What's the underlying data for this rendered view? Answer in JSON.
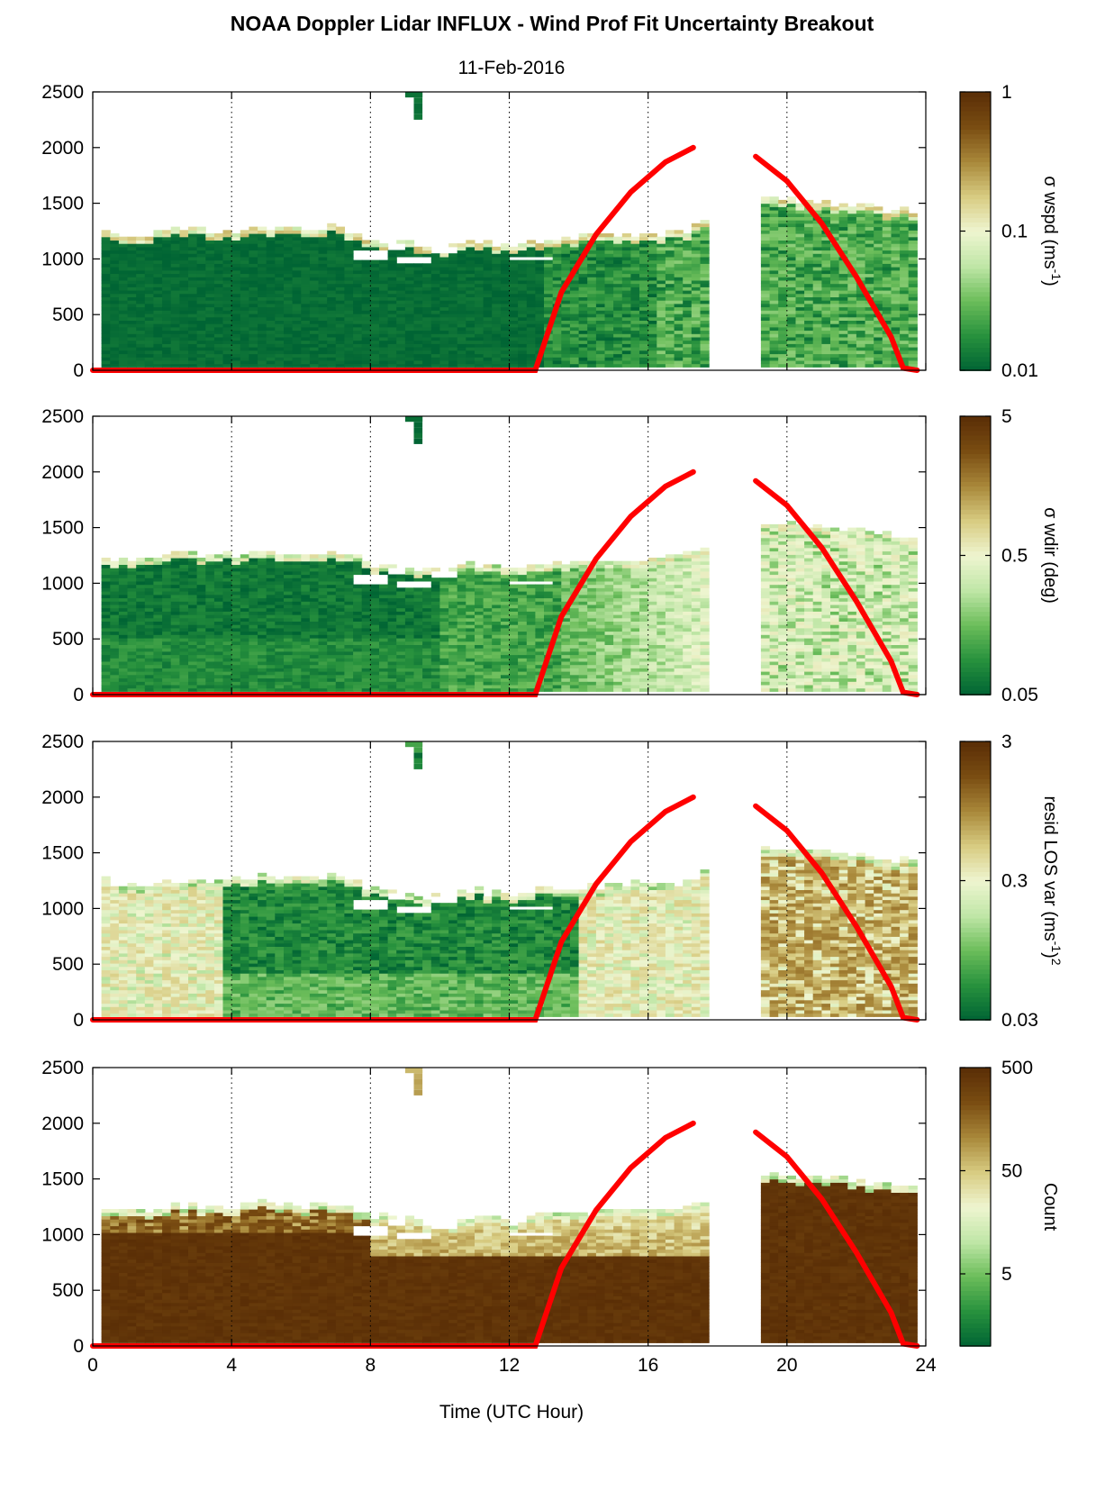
{
  "chart_data": [
    {
      "type": "heatmap",
      "title": "NOAA Doppler Lidar INFLUX - Wind Prof Fit Uncertainty Breakout",
      "subtitle": "11-Feb-2016",
      "xlabel": "",
      "ylabel": "",
      "xlim": [
        0,
        24
      ],
      "ylim": [
        0,
        2500
      ],
      "xticks": [
        0,
        4,
        8,
        12,
        16,
        20,
        24
      ],
      "yticks": [
        0,
        500,
        1000,
        1500,
        2000,
        2500
      ],
      "grid": "vertical dotted at 4-hour ticks",
      "colorbar": {
        "label_main": "σ wspd (ms",
        "label_sup": "-1",
        "label_end": ")",
        "scale": "log",
        "range": [
          0.01,
          1
        ],
        "tick_labels": [
          "0.01",
          "0.1",
          "1"
        ],
        "tick_values": [
          0.01,
          0.1,
          1
        ]
      },
      "cmap": {
        "colors": [
          "#006434",
          "#27913d",
          "#6bbd5a",
          "#bfe6a6",
          "#eef5d0",
          "#d8cc82",
          "#a9883a",
          "#7a4d12",
          "#5a2e06"
        ]
      },
      "field": {
        "low": 0.01,
        "high": 0.012,
        "low_after_1630": 0.02,
        "high_after_1630": 0.035,
        "top_fuzz": 0.15
      }
    },
    {
      "type": "heatmap",
      "xlim": [
        0,
        24
      ],
      "ylim": [
        0,
        2500
      ],
      "xticks": [
        0,
        4,
        8,
        12,
        16,
        20,
        24
      ],
      "yticks": [
        0,
        500,
        1000,
        1500,
        2000,
        2500
      ],
      "grid": "vertical dotted at 4-hour ticks",
      "colorbar": {
        "label_main": "σ wdir (deg)",
        "scale": "log",
        "range": [
          0.05,
          5
        ],
        "tick_labels": [
          "0.05",
          "0.5",
          "5"
        ],
        "tick_values": [
          0.05,
          0.5,
          5
        ]
      },
      "cmap": {
        "colors": [
          "#006434",
          "#27913d",
          "#6bbd5a",
          "#bfe6a6",
          "#eef5d0",
          "#d8cc82",
          "#a9883a",
          "#7a4d12",
          "#5a2e06"
        ]
      },
      "field": {
        "low": 0.06,
        "high": 0.08,
        "afternoon": 0.5,
        "top_fuzz": 0.4
      }
    },
    {
      "type": "heatmap",
      "xlim": [
        0,
        24
      ],
      "ylim": [
        0,
        2500
      ],
      "xticks": [
        0,
        4,
        8,
        12,
        16,
        20,
        24
      ],
      "yticks": [
        0,
        500,
        1000,
        1500,
        2000,
        2500
      ],
      "grid": "vertical dotted at 4-hour ticks",
      "colorbar": {
        "label_main": "resid LOS var (ms",
        "label_sup": "-1",
        "label_end": ")",
        "label_sup2": "2",
        "scale": "log",
        "range": [
          0.03,
          3
        ],
        "tick_labels": [
          "0.03",
          "0.3",
          "3"
        ],
        "tick_values": [
          0.03,
          0.3,
          3
        ]
      },
      "cmap": {
        "colors": [
          "#006434",
          "#27913d",
          "#6bbd5a",
          "#bfe6a6",
          "#eef5d0",
          "#d8cc82",
          "#a9883a",
          "#7a4d12",
          "#5a2e06"
        ]
      },
      "field": {
        "early": 0.3,
        "night": 0.05,
        "afternoon": 0.4,
        "late": 0.8,
        "top_fuzz": 0.25
      }
    },
    {
      "type": "heatmap",
      "xlabel": "Time (UTC Hour)",
      "xlim": [
        0,
        24
      ],
      "ylim": [
        0,
        2500
      ],
      "xticks": [
        0,
        4,
        8,
        12,
        16,
        20,
        24
      ],
      "yticks": [
        0,
        500,
        1000,
        1500,
        2000,
        2500
      ],
      "grid": "vertical dotted at 4-hour ticks",
      "colorbar": {
        "label_main": "Count",
        "scale": "log",
        "range": [
          1,
          500
        ],
        "tick_labels": [
          "5",
          "50",
          "500"
        ],
        "tick_values": [
          5,
          50,
          500
        ]
      },
      "cmap": {
        "colors": [
          "#006434",
          "#27913d",
          "#6bbd5a",
          "#bfe6a6",
          "#eef5d0",
          "#d8cc82",
          "#a9883a",
          "#7a4d12",
          "#5a2e06"
        ]
      },
      "field": {
        "bulk": 450,
        "upper": 60,
        "top_fuzz": 12
      }
    }
  ],
  "data_coverage": {
    "start_hour": 0.25,
    "end_hour": 23.75,
    "gap": [
      17.75,
      19.1
    ],
    "bin_hours": 0.25,
    "bin_m": 30,
    "top_profile": [
      [
        0.25,
        1250
      ],
      [
        1.0,
        1180
      ],
      [
        2.0,
        1230
      ],
      [
        3.0,
        1250
      ],
      [
        4.0,
        1240
      ],
      [
        5.0,
        1270
      ],
      [
        6.0,
        1250
      ],
      [
        7.0,
        1270
      ],
      [
        7.5,
        1230
      ],
      [
        8.0,
        1160
      ],
      [
        9.0,
        1130
      ],
      [
        10.0,
        1080
      ],
      [
        11.0,
        1150
      ],
      [
        12.0,
        1100
      ],
      [
        13.0,
        1160
      ],
      [
        14.0,
        1180
      ],
      [
        15.0,
        1200
      ],
      [
        16.0,
        1210
      ],
      [
        17.0,
        1230
      ],
      [
        17.75,
        1320
      ],
      [
        19.1,
        1540
      ],
      [
        20.0,
        1510
      ],
      [
        21.0,
        1500
      ],
      [
        22.0,
        1470
      ],
      [
        23.0,
        1420
      ],
      [
        23.75,
        1410
      ]
    ],
    "holes": [
      [
        7.5,
        8.6,
        980,
        1050
      ],
      [
        8.5,
        9.0,
        1070,
        1110
      ],
      [
        8.8,
        9.7,
        960,
        1010
      ],
      [
        9.8,
        10.5,
        1040,
        1090
      ],
      [
        12.0,
        13.2,
        990,
        1010
      ]
    ],
    "aloft_patch": [
      9.0,
      9.5,
      2250,
      2500
    ]
  },
  "solar_elevation_overlay": {
    "color": "#ff0000",
    "points": [
      [
        0,
        0
      ],
      [
        12.75,
        0
      ],
      [
        13.5,
        700
      ],
      [
        14.5,
        1220
      ],
      [
        15.5,
        1600
      ],
      [
        16.5,
        1870
      ],
      [
        17.3,
        2000
      ],
      [
        19.1,
        1920
      ],
      [
        20.0,
        1700
      ],
      [
        21.0,
        1320
      ],
      [
        22.0,
        840
      ],
      [
        23.0,
        300
      ],
      [
        23.35,
        20
      ],
      [
        23.75,
        0
      ]
    ],
    "gap": [
      17.3,
      19.1
    ]
  }
}
